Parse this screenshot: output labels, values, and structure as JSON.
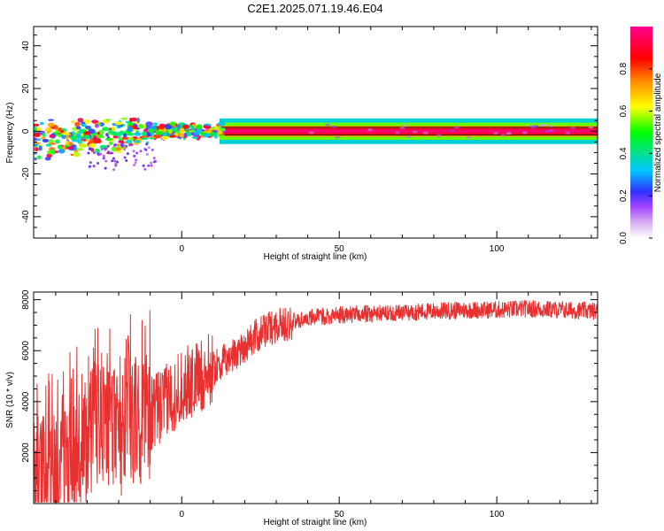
{
  "figure_title": "C2E1.2025.071.19.46.E04",
  "chart_data": [
    {
      "type": "heatmap",
      "xlabel": "Height of straight line (km)",
      "ylabel": "Frequency (Hz)",
      "xlim": [
        -47,
        132
      ],
      "ylim": [
        -50,
        49
      ],
      "x_ticks": [
        0,
        50,
        100
      ],
      "x_tick_labels": [
        "0",
        "50",
        "100"
      ],
      "y_ticks": [
        -40,
        -20,
        0,
        20,
        40
      ],
      "y_tick_labels": [
        "-40",
        "-20",
        "0",
        "20",
        "40"
      ],
      "colorbar": {
        "label": "Normalized spectral amplitude",
        "range": [
          0,
          1
        ],
        "ticks": [
          0,
          0.2,
          0.4,
          0.6,
          0.8
        ],
        "tick_labels": [
          "0.0",
          "0.2",
          "0.4",
          "0.6",
          "0.8"
        ],
        "colors": [
          "#ffffff",
          "#d4a8f0",
          "#a040ff",
          "#3030ff",
          "#00c8ff",
          "#00e090",
          "#00ff00",
          "#ffff00",
          "#ff8000",
          "#ff0000",
          "#ff0090"
        ]
      },
      "band_center_hz": 0,
      "band_halfwidth_hz": 1.5,
      "grid": false
    },
    {
      "type": "line",
      "xlabel": "Height of straight line (km)",
      "ylabel": "SNR (10 * v/v)",
      "xlim": [
        -47,
        132
      ],
      "ylim": [
        0,
        8300
      ],
      "x_ticks": [
        0,
        50,
        100
      ],
      "x_tick_labels": [
        "0",
        "50",
        "100"
      ],
      "y_ticks": [
        2000,
        4000,
        6000,
        8000
      ],
      "y_tick_labels": [
        "2000",
        "4000",
        "6000",
        "8000"
      ],
      "line_color": "#e83030",
      "grid": false,
      "series": [
        {
          "trend_x": [
            -47,
            -40,
            -35,
            -30,
            -25,
            -20,
            -15,
            -10,
            -5,
            0,
            5,
            10,
            15,
            20,
            25,
            30,
            35,
            40,
            50,
            60,
            70,
            80,
            90,
            100,
            110,
            120,
            132
          ],
          "trend_y": [
            1000,
            900,
            1800,
            2500,
            3000,
            2800,
            3300,
            3500,
            4000,
            4600,
            4900,
            5300,
            5700,
            6200,
            6700,
            7000,
            7100,
            7300,
            7400,
            7450,
            7500,
            7550,
            7600,
            7600,
            7650,
            7600,
            7550
          ]
        }
      ]
    }
  ]
}
